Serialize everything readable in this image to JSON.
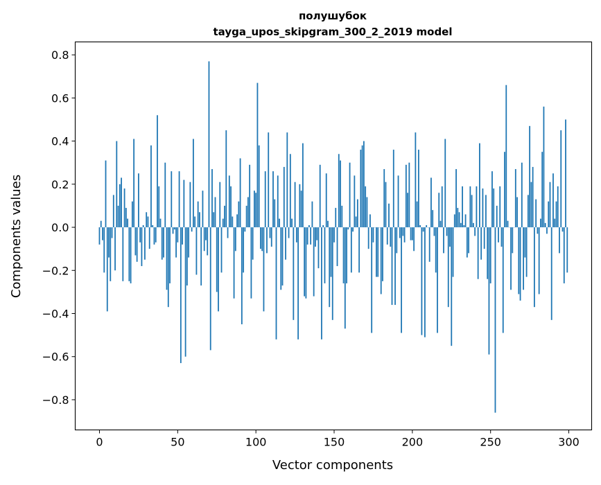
{
  "chart_data": {
    "type": "bar",
    "title": "полушубок",
    "subtitle": "tayga_upos_skipgram_300_2_2019 model",
    "xlabel": "Vector components",
    "ylabel": "Components values",
    "xlim": [
      -15.5,
      314.6
    ],
    "ylim": [
      -0.94,
      0.86
    ],
    "xticks": [
      0,
      50,
      100,
      150,
      200,
      250,
      300
    ],
    "xtick_labels": [
      "0",
      "50",
      "100",
      "150",
      "200",
      "250",
      "300"
    ],
    "yticks": [
      -0.8,
      -0.6,
      -0.4,
      -0.2,
      0.0,
      0.2,
      0.4,
      0.6,
      0.8
    ],
    "ytick_labels": [
      "−0.8",
      "−0.6",
      "−0.4",
      "−0.2",
      "0.0",
      "0.2",
      "0.4",
      "0.6",
      "0.8"
    ],
    "grid": false,
    "color": "#1f77b4",
    "values": [
      -0.08,
      0.03,
      -0.06,
      -0.21,
      0.31,
      -0.39,
      -0.14,
      -0.25,
      -0.05,
      0.15,
      -0.2,
      0.4,
      0.1,
      0.2,
      0.23,
      -0.25,
      0.18,
      0.09,
      0.04,
      -0.25,
      -0.26,
      0.12,
      0.41,
      -0.13,
      -0.16,
      0.25,
      -0.07,
      -0.18,
      0.01,
      -0.15,
      0.07,
      0.05,
      -0.1,
      0.38,
      0.01,
      -0.08,
      -0.07,
      0.52,
      0.19,
      0.04,
      -0.15,
      -0.14,
      0.3,
      -0.29,
      -0.37,
      -0.26,
      0.26,
      -0.03,
      -0.01,
      -0.14,
      -0.07,
      0.26,
      -0.63,
      -0.08,
      0.22,
      -0.6,
      -0.27,
      -0.14,
      0.21,
      -0.02,
      0.41,
      0.05,
      -0.22,
      0.12,
      0.07,
      -0.27,
      0.17,
      -0.11,
      -0.06,
      -0.13,
      0.77,
      -0.57,
      0.27,
      0.07,
      0.14,
      -0.3,
      -0.39,
      0.21,
      -0.21,
      0.04,
      0.1,
      0.45,
      -0.05,
      0.24,
      0.19,
      0.05,
      -0.33,
      -0.11,
      0.06,
      0.12,
      0.32,
      -0.45,
      -0.21,
      -0.02,
      0.1,
      0.14,
      0.29,
      -0.33,
      -0.15,
      0.17,
      0.16,
      0.67,
      0.38,
      -0.1,
      -0.11,
      -0.39,
      0.26,
      -0.12,
      0.44,
      -0.05,
      -0.09,
      0.26,
      0.13,
      -0.52,
      0.24,
      0.04,
      -0.29,
      -0.27,
      0.28,
      -0.15,
      0.44,
      -0.05,
      0.34,
      0.04,
      -0.43,
      0.21,
      -0.07,
      -0.52,
      0.2,
      0.17,
      0.39,
      -0.32,
      -0.33,
      -0.08,
      0.01,
      -0.08,
      0.12,
      -0.32,
      -0.09,
      -0.06,
      -0.19,
      0.29,
      -0.52,
      0.01,
      -0.26,
      0.25,
      0.03,
      -0.37,
      -0.23,
      -0.43,
      -0.07,
      0.09,
      -0.18,
      0.34,
      0.31,
      0.1,
      -0.26,
      -0.47,
      -0.26,
      -0.01,
      0.3,
      -0.21,
      -0.02,
      0.24,
      0.05,
      0.13,
      -0.21,
      0.36,
      0.38,
      0.4,
      0.19,
      0.14,
      -0.1,
      0.06,
      -0.49,
      -0.07,
      0.0,
      -0.23,
      -0.23,
      0.0,
      -0.31,
      -0.25,
      0.27,
      0.21,
      -0.08,
      0.11,
      -0.09,
      -0.36,
      0.36,
      -0.36,
      -0.12,
      0.24,
      -0.05,
      -0.49,
      -0.04,
      -0.07,
      0.29,
      0.16,
      0.3,
      -0.06,
      -0.06,
      -0.11,
      0.44,
      0.12,
      0.36,
      0.01,
      -0.5,
      -0.02,
      -0.51,
      0.01,
      -0.0,
      -0.16,
      0.23,
      0.08,
      -0.04,
      -0.21,
      -0.49,
      0.16,
      0.03,
      0.19,
      -0.12,
      0.41,
      -0.04,
      -0.37,
      -0.09,
      -0.55,
      -0.23,
      0.06,
      0.27,
      0.09,
      0.07,
      0.02,
      0.19,
      0.01,
      0.06,
      -0.14,
      -0.12,
      0.19,
      0.15,
      0.02,
      -0.04,
      0.19,
      -0.24,
      0.39,
      -0.15,
      0.18,
      -0.1,
      0.15,
      -0.24,
      -0.59,
      -0.26,
      0.26,
      0.18,
      -0.86,
      0.1,
      -0.07,
      0.19,
      -0.09,
      -0.49,
      0.35,
      0.66,
      0.03,
      0.0,
      -0.29,
      -0.12,
      0.0,
      0.27,
      0.14,
      -0.31,
      -0.34,
      0.3,
      -0.29,
      -0.14,
      -0.23,
      0.15,
      0.47,
      0.21,
      0.28,
      -0.37,
      0.13,
      -0.03,
      -0.31,
      0.04,
      0.35,
      0.56,
      0.02,
      -0.03,
      0.12,
      0.21,
      -0.43,
      0.25,
      0.04,
      0.12,
      0.19,
      -0.12,
      0.45,
      -0.02,
      -0.26,
      0.5,
      -0.21
    ]
  }
}
